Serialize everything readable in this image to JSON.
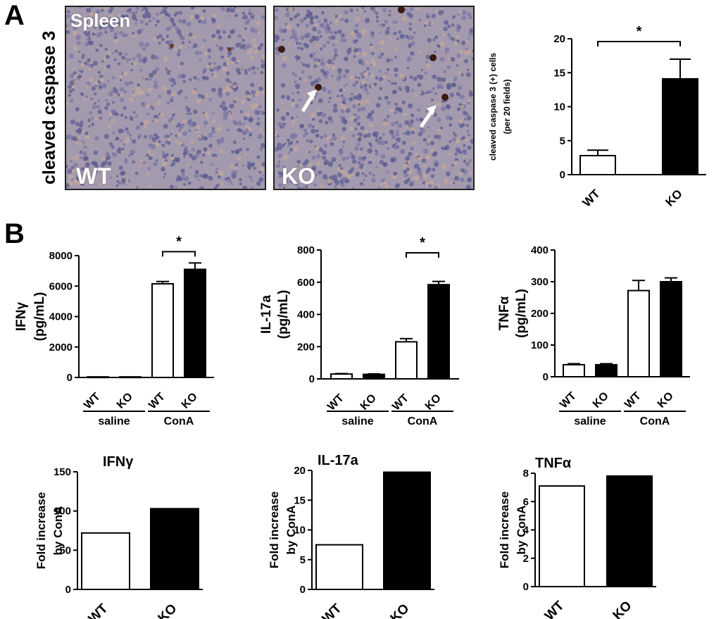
{
  "panel_labels": {
    "a": "A",
    "b": "B"
  },
  "micrographs": {
    "side_label": "cleaved caspase 3",
    "tissue_label": "Spleen",
    "wt_label": "WT",
    "ko_label": "KO"
  },
  "colors": {
    "white_bar": "#ffffff",
    "black_bar": "#000000",
    "stain_bg": "#a49aae",
    "nuclei": "#5a5a8c"
  },
  "chart_data": [
    {
      "type": "bar",
      "categories": [
        "WT",
        "KO"
      ],
      "values": [
        2.8,
        14.1
      ],
      "errors": [
        0.8,
        2.9
      ],
      "fills": [
        "#ffffff",
        "#000000"
      ],
      "ylabel": [
        "cleaved caspase 3 (+) cells",
        "(per 20 fields)"
      ],
      "ylim": [
        0,
        20
      ],
      "yticks": [
        0,
        5,
        10,
        15,
        20
      ],
      "significance": {
        "from": 0,
        "to": 1,
        "label": "*"
      }
    },
    {
      "type": "bar",
      "categories": [
        "WT",
        "KO",
        "WT",
        "KO"
      ],
      "values": [
        40,
        40,
        6150,
        7100
      ],
      "errors": [
        0,
        0,
        150,
        420
      ],
      "fills": [
        "#ffffff",
        "#000000",
        "#ffffff",
        "#000000"
      ],
      "ylabel": [
        "IFNγ",
        "(pg/mL)"
      ],
      "ylim": [
        0,
        8000
      ],
      "yticks": [
        0,
        2000,
        4000,
        6000,
        8000
      ],
      "groups": [
        {
          "label": "saline",
          "from": 0,
          "to": 1
        },
        {
          "label": "ConA",
          "from": 2,
          "to": 3
        }
      ],
      "significance": {
        "from": 2,
        "to": 3,
        "label": "*"
      }
    },
    {
      "type": "bar",
      "categories": [
        "WT",
        "KO",
        "WT",
        "KO"
      ],
      "values": [
        30,
        28,
        230,
        585
      ],
      "errors": [
        3,
        3,
        20,
        20
      ],
      "fills": [
        "#ffffff",
        "#000000",
        "#ffffff",
        "#000000"
      ],
      "ylabel": [
        "IL-17a",
        "(pg/mL)"
      ],
      "ylim": [
        0,
        800
      ],
      "yticks": [
        0,
        200,
        400,
        600,
        800
      ],
      "groups": [
        {
          "label": "saline",
          "from": 0,
          "to": 1
        },
        {
          "label": "ConA",
          "from": 2,
          "to": 3
        }
      ],
      "significance": {
        "from": 2,
        "to": 3,
        "label": "*"
      }
    },
    {
      "type": "bar",
      "categories": [
        "WT",
        "KO",
        "WT",
        "KO"
      ],
      "values": [
        38,
        38,
        272,
        300
      ],
      "errors": [
        3,
        3,
        32,
        12
      ],
      "fills": [
        "#ffffff",
        "#000000",
        "#ffffff",
        "#000000"
      ],
      "ylabel": [
        "TNFα",
        "(pg/mL)"
      ],
      "ylim": [
        0,
        400
      ],
      "yticks": [
        0,
        100,
        200,
        300,
        400
      ],
      "groups": [
        {
          "label": "saline",
          "from": 0,
          "to": 1
        },
        {
          "label": "ConA",
          "from": 2,
          "to": 3
        }
      ]
    },
    {
      "type": "bar",
      "title": "IFNγ",
      "categories": [
        "WT",
        "KO"
      ],
      "values": [
        72,
        103
      ],
      "fills": [
        "#ffffff",
        "#000000"
      ],
      "ylabel": [
        "Fold increase",
        "by ConA"
      ],
      "ylim": [
        0,
        150
      ],
      "yticks": [
        0,
        50,
        100,
        150
      ]
    },
    {
      "type": "bar",
      "title": "IL-17a",
      "categories": [
        "WT",
        "KO"
      ],
      "values": [
        7.5,
        19.7
      ],
      "fills": [
        "#ffffff",
        "#000000"
      ],
      "ylabel": [
        "Fold increase",
        "by ConA"
      ],
      "ylim": [
        0,
        20
      ],
      "yticks": [
        0,
        5,
        10,
        15,
        20
      ]
    },
    {
      "type": "bar",
      "title": "TNFα",
      "categories": [
        "WT",
        "KO"
      ],
      "values": [
        7.1,
        7.8
      ],
      "fills": [
        "#ffffff",
        "#000000"
      ],
      "ylabel": [
        "Fold increase",
        "by ConA"
      ],
      "ylim": [
        0,
        8
      ],
      "yticks": [
        0,
        2,
        4,
        6,
        8
      ]
    }
  ]
}
